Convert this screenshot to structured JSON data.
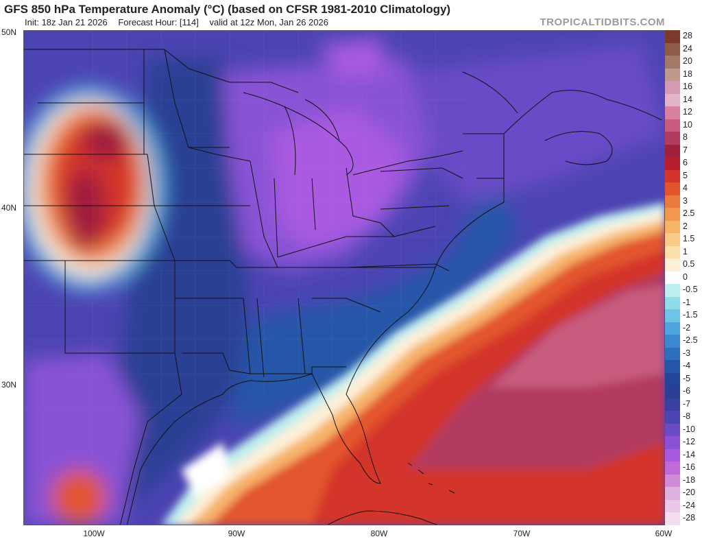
{
  "header": {
    "title": "GFS 850 hPa Temperature Anomaly (°C) (based on CFSR 1981-2010 Climatology)",
    "init": "Init: 18z Jan 21 2026",
    "forecast_hour": "Forecast Hour: [114]",
    "valid": "valid at 12z Mon, Jan 26 2026",
    "brand": "TROPICALTIDBITS.COM"
  },
  "axes": {
    "lat_labels": [
      "50N",
      "40N",
      "30N"
    ],
    "lon_labels": [
      "100W",
      "90W",
      "80W",
      "70W",
      "60W"
    ]
  },
  "map": {
    "region": "Eastern North America and western Atlantic",
    "lat_range": [
      22,
      50
    ],
    "lon_range": [
      -105,
      -60
    ],
    "features": [
      "warm anomaly over Northern Plains",
      "cold anomaly over Great Lakes and Ohio Valley",
      "warm anomaly over Florida and western Atlantic"
    ]
  },
  "colorbar": {
    "entries": [
      {
        "label": "28",
        "color": "#7b3b2b"
      },
      {
        "label": "24",
        "color": "#8e5a4a"
      },
      {
        "label": "20",
        "color": "#a4796a"
      },
      {
        "label": "18",
        "color": "#bf9a8c"
      },
      {
        "label": "16",
        "color": "#d39ab1"
      },
      {
        "label": "14",
        "color": "#e5b3c7"
      },
      {
        "label": "12",
        "color": "#d97fa0"
      },
      {
        "label": "10",
        "color": "#c85b7e"
      },
      {
        "label": "8",
        "color": "#b23b5e"
      },
      {
        "label": "7",
        "color": "#a11f3c"
      },
      {
        "label": "6",
        "color": "#b81f2d"
      },
      {
        "label": "5",
        "color": "#d4342a"
      },
      {
        "label": "4",
        "color": "#e2542e"
      },
      {
        "label": "3",
        "color": "#eb7a3d"
      },
      {
        "label": "2.5",
        "color": "#f29750"
      },
      {
        "label": "2",
        "color": "#f6b36a"
      },
      {
        "label": "1.5",
        "color": "#f9cb8a"
      },
      {
        "label": "1",
        "color": "#fbe0ae"
      },
      {
        "label": "0.5",
        "color": "#fdf0d8"
      },
      {
        "label": "0",
        "color": "#ffffff"
      },
      {
        "label": "-0.5",
        "color": "#bfeef0"
      },
      {
        "label": "-1",
        "color": "#8fdde8"
      },
      {
        "label": "-1.5",
        "color": "#6ec4e6"
      },
      {
        "label": "-2",
        "color": "#4ea6dc"
      },
      {
        "label": "-2.5",
        "color": "#3a89cf"
      },
      {
        "label": "-3",
        "color": "#2d6fbd"
      },
      {
        "label": "-4",
        "color": "#2556a8"
      },
      {
        "label": "-5",
        "color": "#22459a"
      },
      {
        "label": "-6",
        "color": "#2a3f94"
      },
      {
        "label": "-7",
        "color": "#3a3fa0"
      },
      {
        "label": "-8",
        "color": "#4d44b3"
      },
      {
        "label": "-10",
        "color": "#6a4cc7"
      },
      {
        "label": "-12",
        "color": "#8952d6"
      },
      {
        "label": "-14",
        "color": "#a95ae0"
      },
      {
        "label": "-16",
        "color": "#c06ad8"
      },
      {
        "label": "-18",
        "color": "#d08ad6"
      },
      {
        "label": "-20",
        "color": "#e0b0e0"
      },
      {
        "label": "-24",
        "color": "#ecc8e8"
      },
      {
        "label": "-28",
        "color": "#f3dff0"
      }
    ]
  }
}
